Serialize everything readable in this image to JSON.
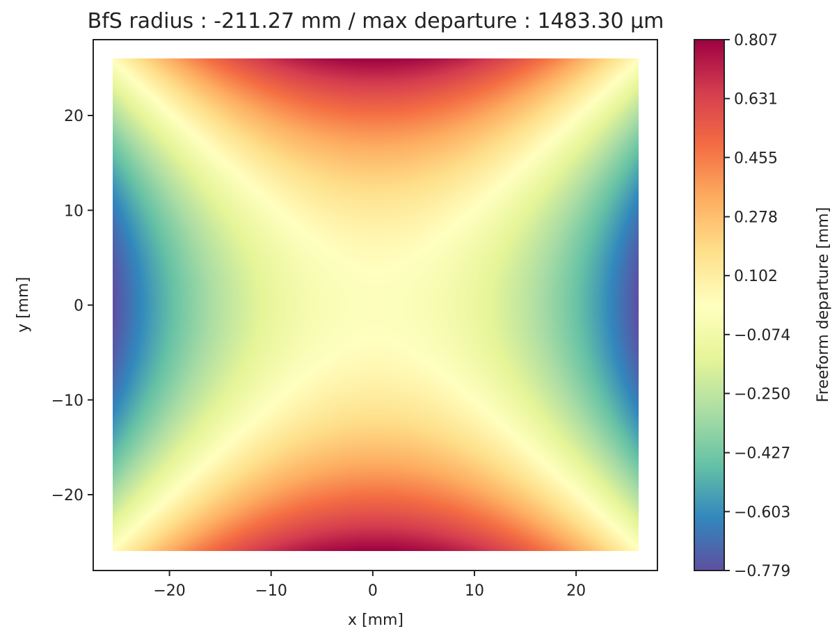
{
  "chart_data": {
    "type": "heatmap",
    "title": "BfS radius : -211.27 mm /  max departure : 1483.30 µm",
    "xlabel": "x [mm]",
    "ylabel": "y [mm]",
    "xlim": [
      -27.5,
      28
    ],
    "ylim": [
      -28,
      28
    ],
    "xticks": [
      {
        "value": -20,
        "label": "−20"
      },
      {
        "value": -10,
        "label": "−10"
      },
      {
        "value": 0,
        "label": "0"
      },
      {
        "value": 10,
        "label": "10"
      },
      {
        "value": 20,
        "label": "20"
      }
    ],
    "yticks": [
      {
        "value": 20,
        "label": "20"
      },
      {
        "value": 10,
        "label": "10"
      },
      {
        "value": 0,
        "label": "0"
      },
      {
        "value": -10,
        "label": "−10"
      },
      {
        "value": -20,
        "label": "−20"
      }
    ],
    "grid": false,
    "data_extent": {
      "x": [
        -26,
        26
      ],
      "y": [
        -26,
        26
      ]
    },
    "surface": {
      "model": "astigmatism",
      "z_at_origin": 0.0,
      "z_at_x_edge": -0.779,
      "z_at_y_edge": 0.807
    },
    "colorbar": {
      "label": "Freeform departure [mm]",
      "min": -0.779,
      "max": 0.807,
      "colormap": "Spectral_r",
      "ticks": [
        {
          "value": 0.807,
          "label": "0.807"
        },
        {
          "value": 0.631,
          "label": "0.631"
        },
        {
          "value": 0.455,
          "label": "0.455"
        },
        {
          "value": 0.278,
          "label": "0.278"
        },
        {
          "value": 0.102,
          "label": "0.102"
        },
        {
          "value": -0.074,
          "label": "−0.074"
        },
        {
          "value": -0.25,
          "label": "−0.250"
        },
        {
          "value": -0.427,
          "label": "−0.427"
        },
        {
          "value": -0.603,
          "label": "−0.603"
        },
        {
          "value": -0.779,
          "label": "−0.779"
        }
      ],
      "colors": [
        "#5e4fa2",
        "#3288bd",
        "#66c2a5",
        "#abdda4",
        "#e6f598",
        "#ffffbf",
        "#fee08b",
        "#fdae61",
        "#f46d43",
        "#d53e4f",
        "#9e0142"
      ]
    }
  }
}
